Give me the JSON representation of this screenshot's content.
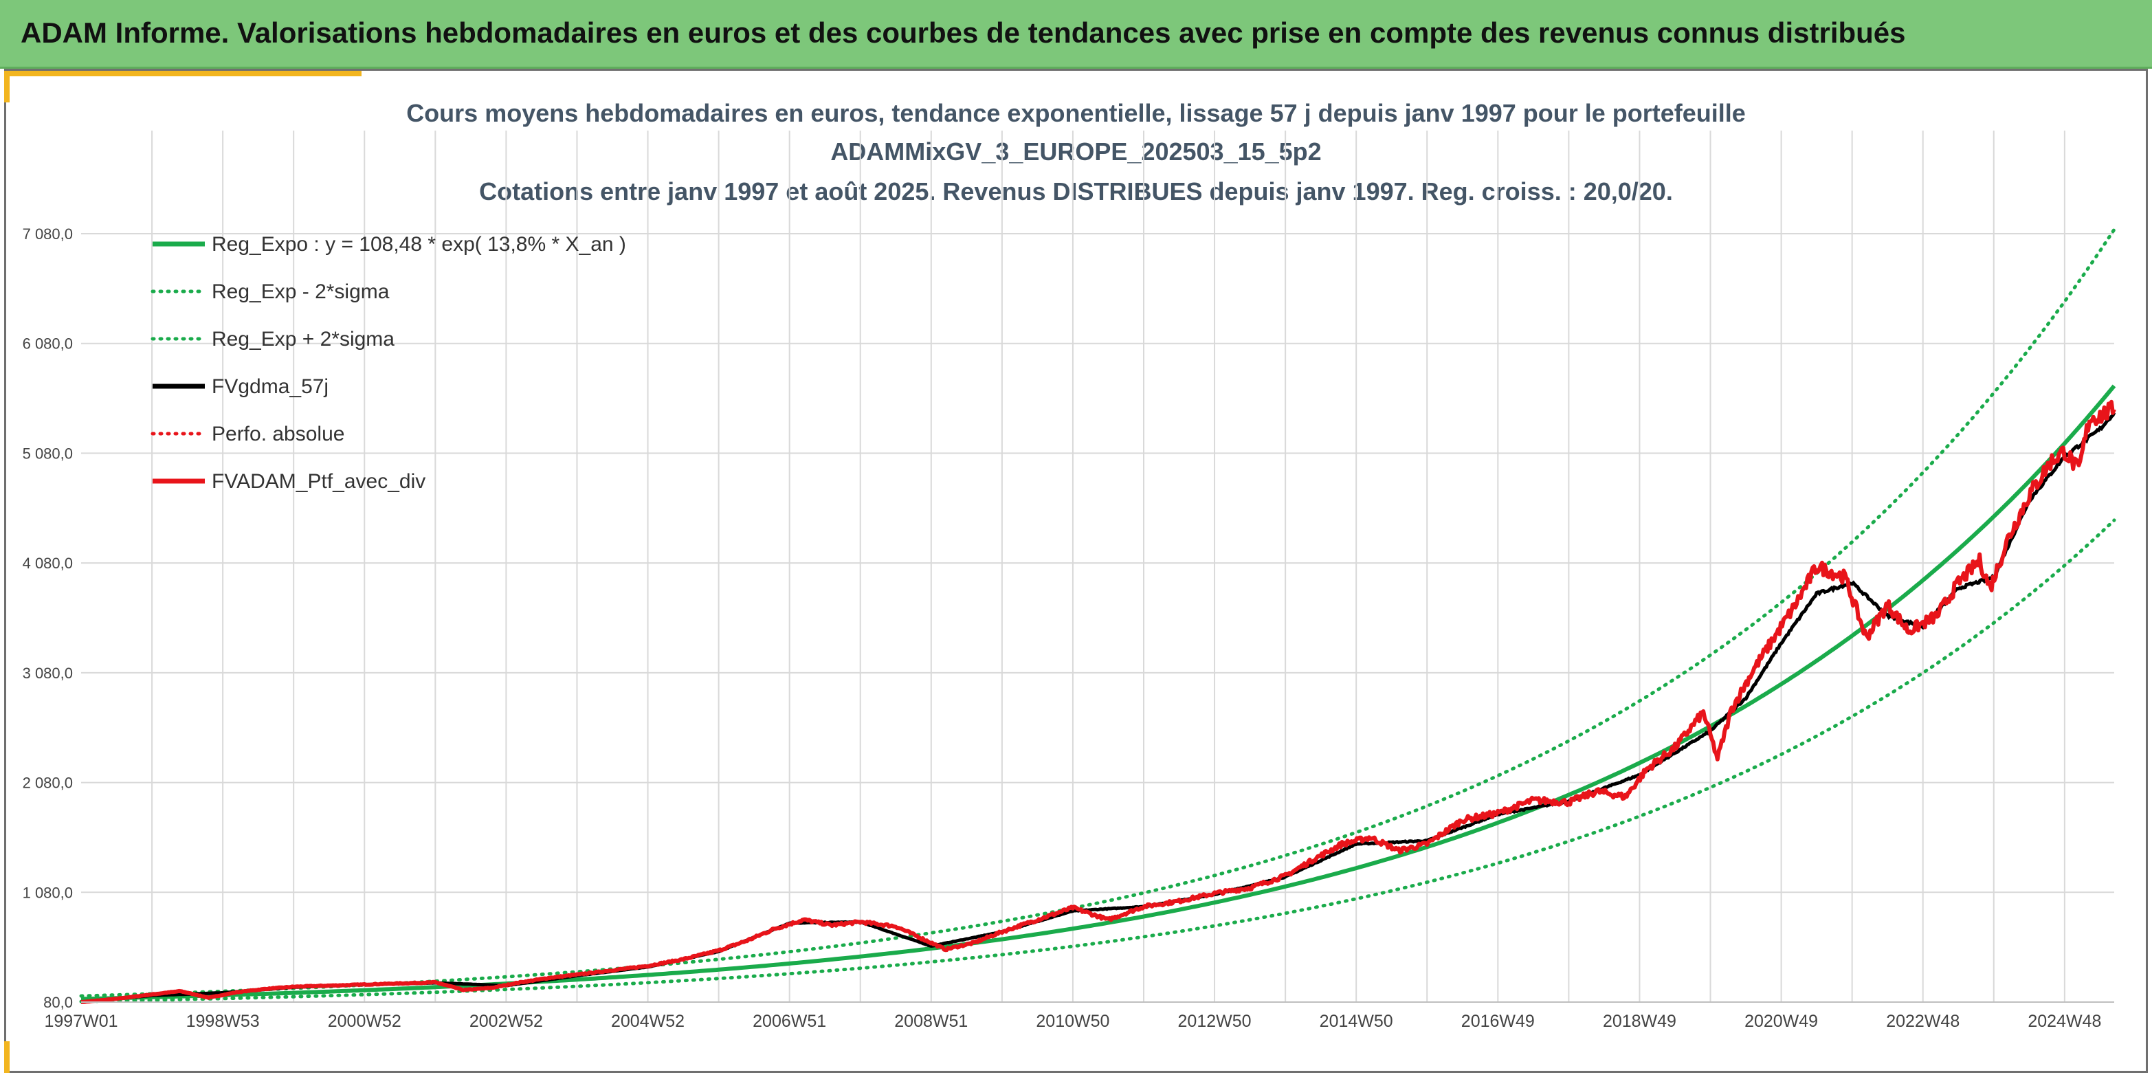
{
  "banner": {
    "title": "ADAM Informe. Valorisations hebdomadaires en euros et des courbes de tendances avec prise en compte des revenus connus distribués"
  },
  "colors": {
    "banner": "#7dc77a",
    "accent": "#f2b51f",
    "trend": "#1aab4b",
    "smooth": "#000000",
    "portfolio": "#e8141a",
    "grid": "#d9d9d9"
  },
  "chart_data": {
    "type": "line",
    "title_lines": [
      "Cours moyens hebdomadaires en euros, tendance exponentielle, lissage 57 j depuis janv 1997 pour le portefeuille",
      "ADAMMixGV_3_EUROPE_202503_15_5p2",
      "Cotations entre janv 1997 et août 2025. Revenus DISTRIBUES depuis janv 1997. Reg. croiss. : 20,0/20."
    ],
    "x_tick_labels": [
      "1997W01",
      "1998W53",
      "2000W52",
      "2002W52",
      "2004W52",
      "2006W51",
      "2008W51",
      "2010W50",
      "2012W50",
      "2014W50",
      "2016W49",
      "2018W49",
      "2020W49",
      "2022W48",
      "2024W48"
    ],
    "y_tick_labels": [
      "80,0",
      "1 080,0",
      "2 080,0",
      "3 080,0",
      "4 080,0",
      "5 080,0",
      "6 080,0",
      "7 080,0"
    ],
    "xlim": [
      1997.0,
      2025.7
    ],
    "ylim": [
      80,
      7080
    ],
    "grid": true,
    "legend_position": "top-left",
    "legend": [
      {
        "label": "Reg_Expo : y = 108,48 * exp( 13,8% *  X_an )",
        "color": "#1aab4b",
        "style": "solid"
      },
      {
        "label": "Reg_Exp - 2*sigma",
        "color": "#1aab4b",
        "style": "dotted"
      },
      {
        "label": "Reg_Exp + 2*sigma",
        "color": "#1aab4b",
        "style": "dotted"
      },
      {
        "label": "FVgdma_57j",
        "color": "#000000",
        "style": "solid"
      },
      {
        "label": "Perfo. absolue",
        "color": "#e8141a",
        "style": "dotted"
      },
      {
        "label": "FVADAM_Ptf_avec_div",
        "color": "#e8141a",
        "style": "solid"
      }
    ],
    "trend": {
      "a": 108.48,
      "rate": 0.138,
      "lower_factor": 0.785,
      "upper_factor": 1.25
    },
    "portfolio_series": {
      "name": "FVADAM_Ptf_avec_div",
      "x": [
        1997.0,
        1997.5,
        1998.0,
        1998.4,
        1998.8,
        1999.2,
        1999.6,
        2000.0,
        2000.5,
        2001.0,
        2001.5,
        2002.0,
        2002.4,
        2002.8,
        2003.2,
        2003.6,
        2004.0,
        2004.5,
        2005.0,
        2005.5,
        2006.0,
        2006.4,
        2006.8,
        2007.2,
        2007.6,
        2008.0,
        2008.5,
        2008.9,
        2009.2,
        2009.6,
        2010.0,
        2010.5,
        2011.0,
        2011.5,
        2012.0,
        2012.5,
        2013.0,
        2013.5,
        2014.0,
        2014.4,
        2014.8,
        2015.2,
        2015.6,
        2016.0,
        2016.5,
        2017.0,
        2017.5,
        2018.0,
        2018.4,
        2018.8,
        2019.1,
        2019.5,
        2019.9,
        2020.1,
        2020.3,
        2020.6,
        2020.9,
        2021.2,
        2021.5,
        2021.9,
        2022.2,
        2022.5,
        2022.8,
        2023.2,
        2023.5,
        2023.8,
        2023.95,
        2024.2,
        2024.5,
        2024.8,
        2025.0,
        2025.2,
        2025.35,
        2025.5,
        2025.7
      ],
      "y": [
        80,
        110,
        150,
        180,
        120,
        170,
        200,
        220,
        230,
        240,
        250,
        260,
        190,
        210,
        260,
        300,
        330,
        370,
        410,
        470,
        550,
        640,
        750,
        830,
        780,
        810,
        770,
        650,
        560,
        620,
        720,
        830,
        940,
        830,
        950,
        1000,
        1070,
        1120,
        1230,
        1380,
        1520,
        1580,
        1460,
        1520,
        1740,
        1800,
        1920,
        1900,
        2000,
        1950,
        2200,
        2400,
        2720,
        2300,
        2750,
        3100,
        3400,
        3700,
        4050,
        3950,
        3400,
        3700,
        3460,
        3600,
        3900,
        4100,
        3850,
        4300,
        4700,
        5000,
        5100,
        4920,
        5400,
        5420,
        5480
      ]
    },
    "smooth_series": {
      "name": "FVgdma_57j",
      "x": [
        1997.0,
        1998.0,
        1999.0,
        2000.0,
        2001.0,
        2002.0,
        2003.0,
        2004.0,
        2005.0,
        2006.0,
        2007.0,
        2008.0,
        2009.0,
        2010.0,
        2011.0,
        2012.0,
        2013.0,
        2014.0,
        2015.0,
        2016.0,
        2017.0,
        2018.0,
        2019.0,
        2020.0,
        2020.5,
        2021.0,
        2021.5,
        2022.0,
        2022.5,
        2023.0,
        2023.5,
        2024.0,
        2024.5,
        2025.0,
        2025.5,
        2025.7
      ],
      "y": [
        80,
        140,
        165,
        215,
        240,
        255,
        230,
        320,
        400,
        540,
        800,
        810,
        590,
        720,
        910,
        950,
        1060,
        1220,
        1520,
        1550,
        1790,
        1910,
        2150,
        2550,
        2850,
        3350,
        3800,
        3900,
        3600,
        3500,
        3850,
        3950,
        4650,
        5050,
        5300,
        5450
      ]
    }
  }
}
